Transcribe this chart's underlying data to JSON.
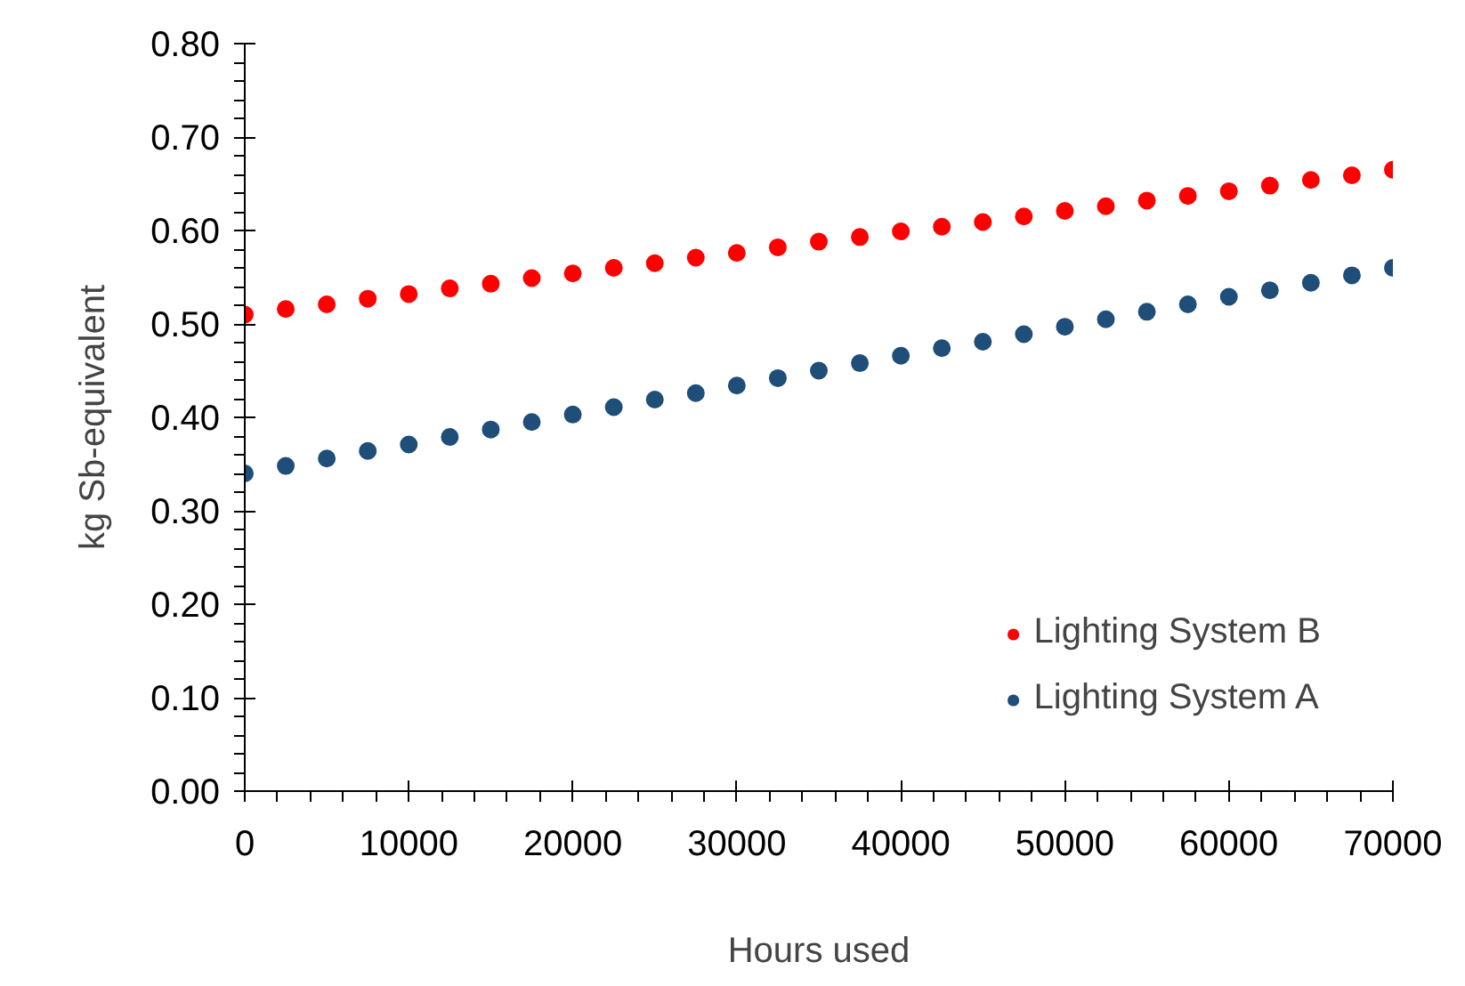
{
  "chart_data": {
    "type": "scatter",
    "xlabel": "Hours used",
    "ylabel": "kg Sb-equivalent",
    "x": [
      0,
      2500,
      5000,
      7500,
      10000,
      12500,
      15000,
      17500,
      20000,
      22500,
      25000,
      27500,
      30000,
      32500,
      35000,
      37500,
      40000,
      42500,
      45000,
      47500,
      50000,
      52500,
      55000,
      57500,
      60000,
      62500,
      65000,
      67500,
      70000
    ],
    "series": [
      {
        "name": "Lighting System B",
        "color": "#ff0000",
        "values": [
          0.51,
          0.516,
          0.521,
          0.527,
          0.532,
          0.538,
          0.543,
          0.549,
          0.554,
          0.56,
          0.565,
          0.571,
          0.576,
          0.582,
          0.588,
          0.593,
          0.599,
          0.604,
          0.609,
          0.615,
          0.621,
          0.626,
          0.632,
          0.637,
          0.642,
          0.648,
          0.654,
          0.659,
          0.665
        ]
      },
      {
        "name": "Lighting System A",
        "color": "#1f4e79",
        "values": [
          0.34,
          0.348,
          0.356,
          0.364,
          0.371,
          0.379,
          0.387,
          0.395,
          0.403,
          0.411,
          0.419,
          0.426,
          0.434,
          0.442,
          0.45,
          0.458,
          0.466,
          0.474,
          0.481,
          0.489,
          0.497,
          0.505,
          0.513,
          0.521,
          0.529,
          0.536,
          0.544,
          0.552,
          0.56
        ]
      }
    ],
    "xlim": [
      0,
      70000
    ],
    "xticks": [
      0,
      10000,
      20000,
      30000,
      40000,
      50000,
      60000,
      70000
    ],
    "ylim": [
      0,
      0.8
    ],
    "yticks": [
      {
        "value": 0,
        "label": "0.00"
      },
      {
        "value": 0.1,
        "label": "0.10"
      },
      {
        "value": 0.2,
        "label": "0.20"
      },
      {
        "value": 0.3,
        "label": "0.30"
      },
      {
        "value": 0.4,
        "label": "0.40"
      },
      {
        "value": 0.5,
        "label": "0.50"
      },
      {
        "value": 0.6,
        "label": "0.60"
      },
      {
        "value": 0.7,
        "label": "0.70"
      },
      {
        "value": 0.8,
        "label": "0.80"
      }
    ],
    "grid": false,
    "legend": "bottom right",
    "marker": "circle"
  }
}
